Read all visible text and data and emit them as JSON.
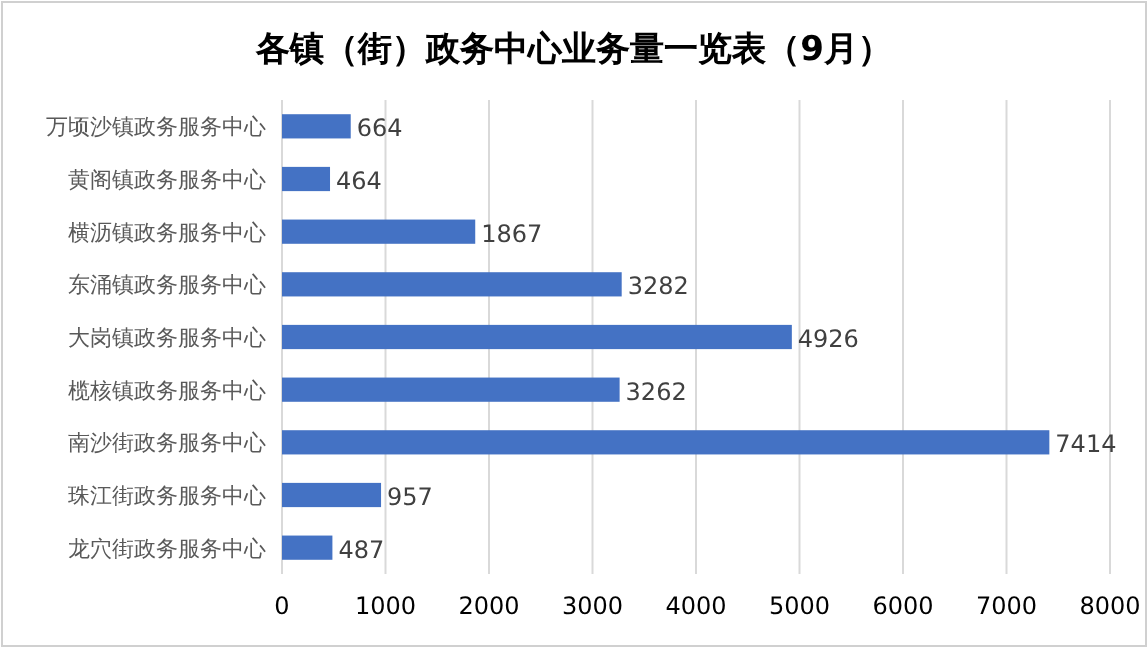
{
  "chart_data": {
    "type": "bar",
    "orientation": "horizontal",
    "title": "各镇（街）政务中心业务量一览表（9月）",
    "categories": [
      "万顷沙镇政务服务中心",
      "黄阁镇政务服务中心",
      "横沥镇政务服务中心",
      "东涌镇政务服务中心",
      "大岗镇政务服务中心",
      "榄核镇政务服务中心",
      "南沙街政务服务中心",
      "珠江街政务服务中心",
      "龙穴街政务服务中心"
    ],
    "values": [
      664,
      464,
      1867,
      3282,
      4926,
      3262,
      7414,
      957,
      487
    ],
    "color": "#4472c4",
    "xlim": [
      0,
      8000
    ],
    "xticks": [
      0,
      1000,
      2000,
      3000,
      4000,
      5000,
      6000,
      7000,
      8000
    ],
    "grid": "x",
    "data_labels": true
  }
}
